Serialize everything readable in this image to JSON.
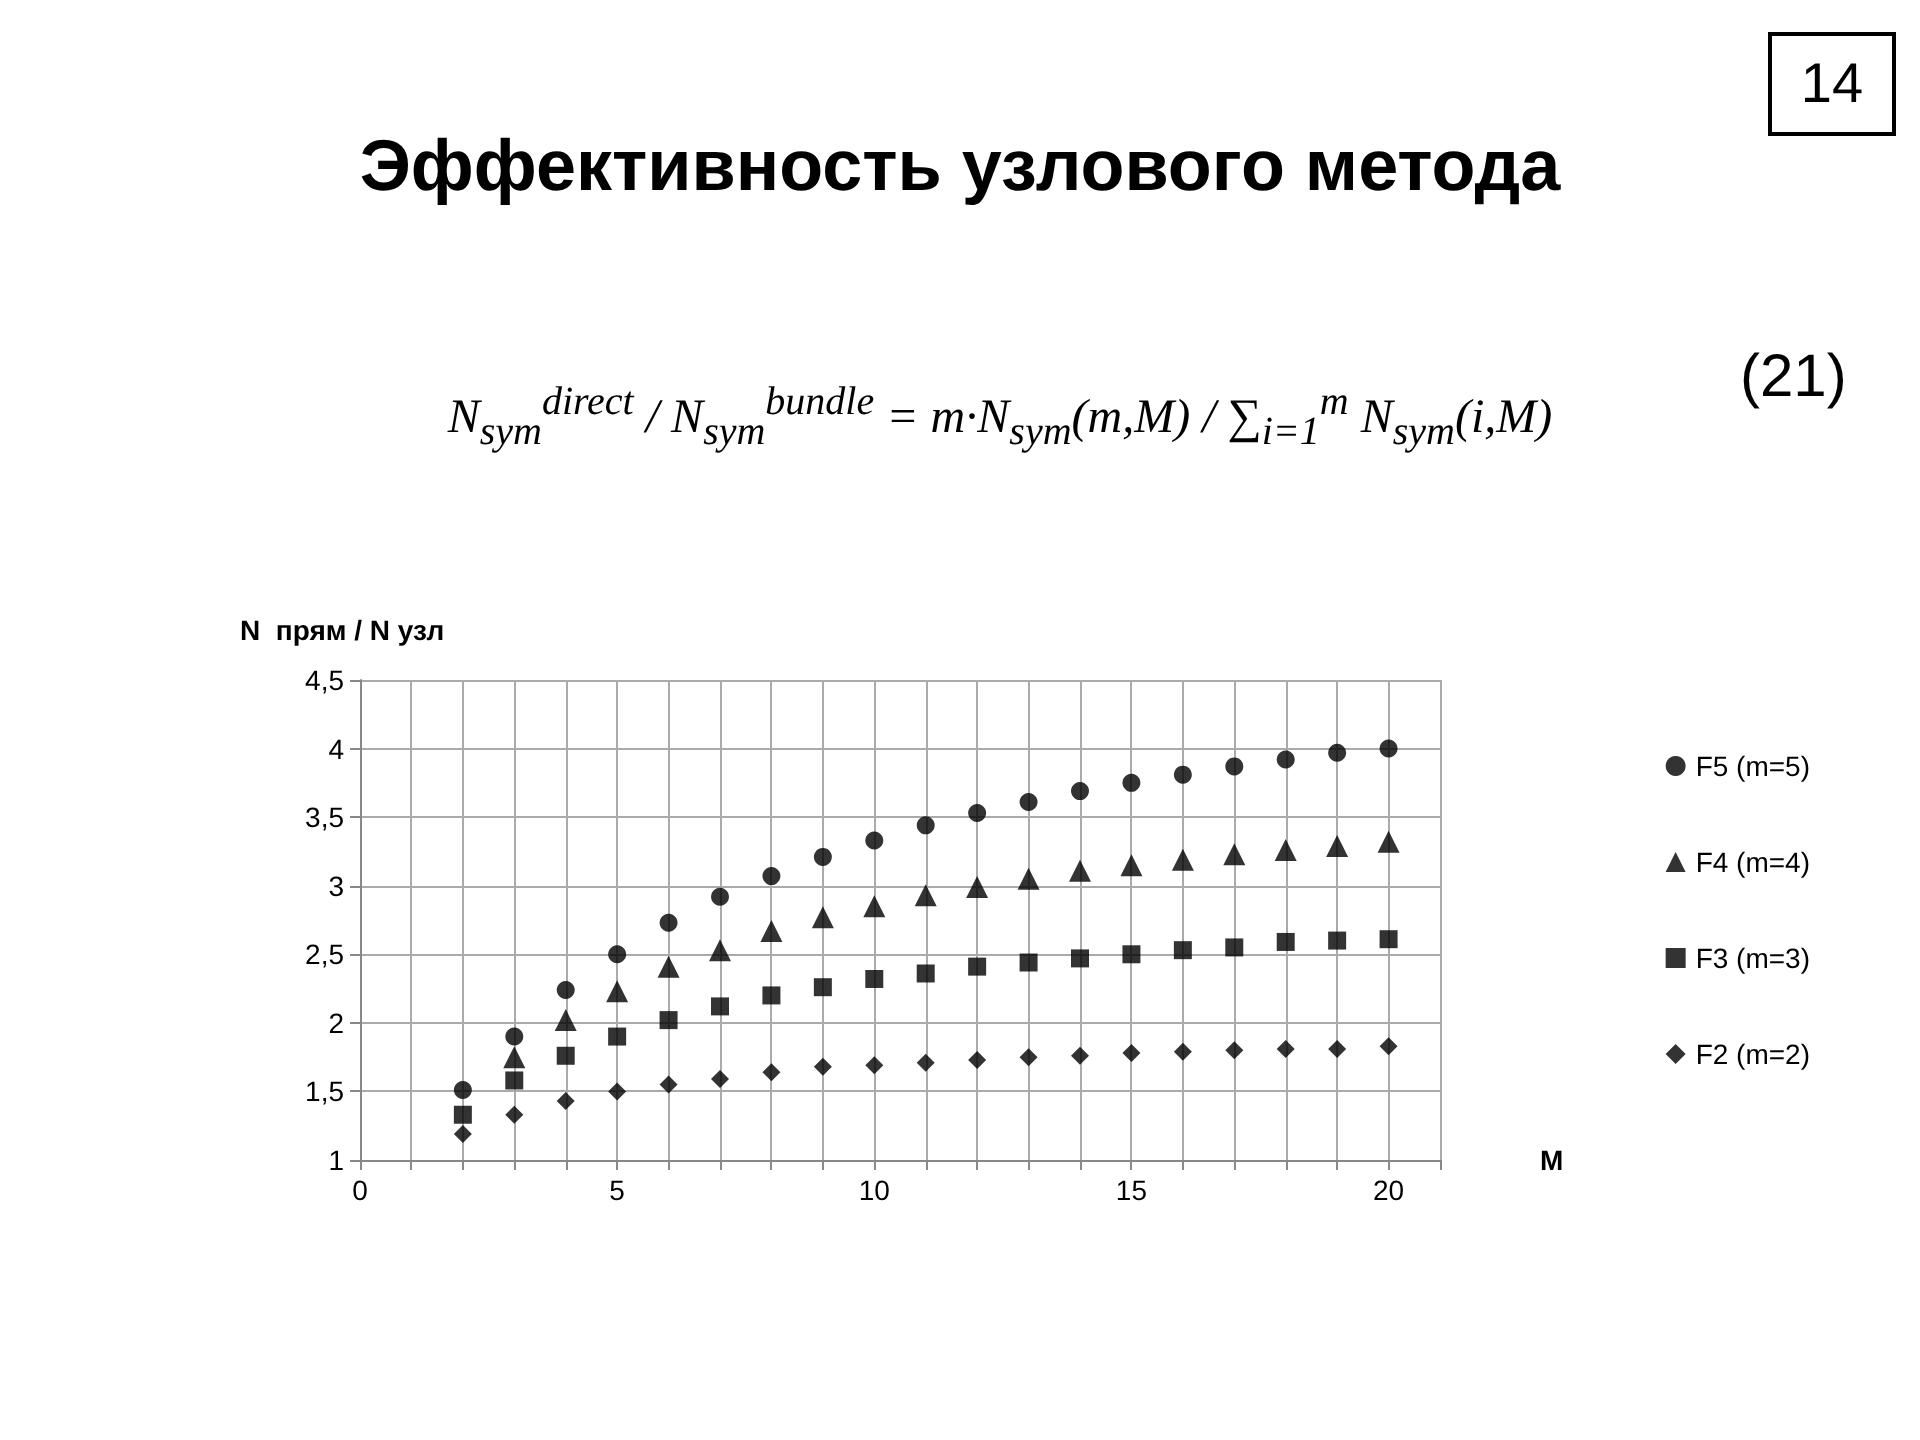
{
  "chart_data": {
    "type": "scatter",
    "title": "Эффективность узлового метода",
    "xlabel": "M",
    "ylabel": "N  прям / N узл",
    "annotations": [
      "N$_{sym}$$^{direct}$ / N$_{sym}$$^{bundle}$ = m·N$_{sym}$(m,M) / ∑$_{i=1}$$^{m}$ N$_{sym}$(i,M)",
      "(21)",
      "14"
    ],
    "x": [
      2,
      3,
      4,
      5,
      6,
      7,
      8,
      9,
      10,
      11,
      12,
      13,
      14,
      15,
      16,
      17,
      18,
      19,
      20
    ],
    "series": [
      {
        "name": "F5 (m=5)",
        "color": "#000000",
        "marker": "circle",
        "values": [
          1.51,
          1.9,
          2.24,
          2.5,
          2.73,
          2.92,
          3.07,
          3.21,
          3.33,
          3.44,
          3.53,
          3.61,
          3.69,
          3.75,
          3.81,
          3.87,
          3.92,
          3.97,
          4.0
        ]
      },
      {
        "name": "F4 (m=4)",
        "color": "#000000",
        "marker": "triangle",
        "values": [
          null,
          1.75,
          2.02,
          2.23,
          2.41,
          2.53,
          2.67,
          2.77,
          2.85,
          2.93,
          2.99,
          3.05,
          3.11,
          3.15,
          3.19,
          3.23,
          3.26,
          3.29,
          3.32
        ]
      },
      {
        "name": "F3 (m=3)",
        "color": "#000000",
        "marker": "square",
        "values": [
          1.33,
          1.58,
          1.76,
          1.9,
          2.02,
          2.12,
          2.2,
          2.26,
          2.32,
          2.36,
          2.41,
          2.44,
          2.47,
          2.5,
          2.53,
          2.55,
          2.59,
          2.6,
          2.61
        ]
      },
      {
        "name": "F2 (m=2)",
        "color": "#000000",
        "marker": "diamond",
        "values": [
          1.19,
          1.33,
          1.43,
          1.5,
          1.55,
          1.59,
          1.64,
          1.68,
          1.69,
          1.71,
          1.73,
          1.75,
          1.76,
          1.78,
          1.79,
          1.8,
          1.81,
          1.81,
          1.83
        ]
      }
    ],
    "xlim": [
      0,
      21
    ],
    "xticks": [
      0,
      {
        "value": 1,
        "label": null
      },
      {
        "value": 2,
        "label": null
      },
      {
        "value": 3,
        "label": null
      },
      {
        "value": 4,
        "label": null
      },
      5,
      {
        "value": 6,
        "label": null
      },
      {
        "value": 7,
        "label": null
      },
      {
        "value": 8,
        "label": null
      },
      {
        "value": 9,
        "label": null
      },
      10,
      {
        "value": 11,
        "label": null
      },
      {
        "value": 12,
        "label": null
      },
      {
        "value": 13,
        "label": null
      },
      {
        "value": 14,
        "label": null
      },
      15,
      {
        "value": 16,
        "label": null
      },
      {
        "value": 17,
        "label": null
      },
      {
        "value": 18,
        "label": null
      },
      {
        "value": 19,
        "label": null
      },
      20,
      {
        "value": 21,
        "label": null
      }
    ],
    "ylim": [
      1,
      4.5
    ],
    "yticks": [
      1,
      {
        "value": 1.5,
        "label": "1,5"
      },
      2,
      {
        "value": 2.5,
        "label": "2,5"
      },
      3,
      {
        "value": 3.5,
        "label": "3,5"
      },
      4,
      {
        "value": 4.5,
        "label": "4,5"
      }
    ],
    "grid": true,
    "legend": "right"
  }
}
